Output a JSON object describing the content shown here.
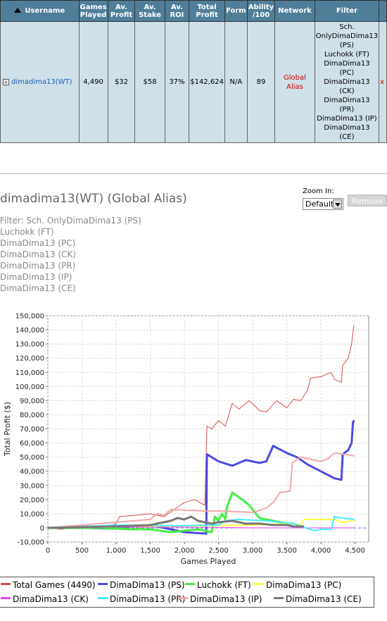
{
  "table": {
    "headers": [
      "Username",
      "Games Played",
      "Av. Profit",
      "Av. Stake",
      "Av. ROI",
      "Total Profit",
      "Form",
      "Ability /100",
      "Network",
      "Filter"
    ],
    "row": {
      "expand": "+",
      "username": "dimadima13(WT)",
      "games_played": "4,490",
      "av_profit": "$32",
      "av_stake": "$58",
      "av_roi": "37%",
      "total_profit": "$142,624",
      "form": "N/A",
      "ability": "89",
      "network": "Global Alias",
      "filter": [
        "Sch.",
        "OnlyDimaDima13",
        "(PS)",
        "Luchokk (FT)",
        "DimaDima13",
        "(PC)",
        "DimaDima13",
        "(CK)",
        "DimaDima13",
        "(PR)",
        "DimaDima13 (IP)",
        "DimaDima13",
        "(CE)"
      ],
      "remove": "x"
    }
  },
  "chart_title": "dimadima13(WT) (Global Alias)",
  "filter_lines": [
    "Filter: Sch. OnlyDimaDima13 (PS)",
    "Luchokk (FT)",
    "DimaDima13 (PC)",
    "DimaDima13 (CK)",
    "DimaDima13 (PR)",
    "DimaDima13 (IP)",
    "DimaDima13 (CE)"
  ],
  "zoom": {
    "label": "Zoom In:",
    "value": "Default",
    "remove_label": "Remove"
  },
  "colors": {
    "header_bg": "#4f7e99",
    "row_bg": "#cfe0e8",
    "link": "#1f5db5",
    "network": "#c00000"
  },
  "chart_data": {
    "type": "line",
    "xlabel": "Games Played",
    "ylabel": "Total Profit ($)",
    "xlim": [
      0,
      4700
    ],
    "ylim": [
      -10000,
      150000
    ],
    "x_ticks": [
      0,
      500,
      1000,
      1500,
      2000,
      2500,
      3000,
      3500,
      4000,
      4500
    ],
    "y_ticks": [
      -10000,
      0,
      10000,
      20000,
      30000,
      40000,
      50000,
      60000,
      70000,
      80000,
      90000,
      100000,
      110000,
      120000,
      130000,
      140000,
      150000
    ],
    "grid": true,
    "legend": "bottom",
    "series": [
      {
        "name": "Total Games (4490)",
        "color": "#d94a4a",
        "width": 1,
        "points": [
          [
            0,
            0
          ],
          [
            200,
            -1000
          ],
          [
            500,
            1500
          ],
          [
            800,
            0
          ],
          [
            1000,
            3000
          ],
          [
            1050,
            8000
          ],
          [
            1300,
            9000
          ],
          [
            1500,
            10000
          ],
          [
            1700,
            8000
          ],
          [
            1850,
            13000
          ],
          [
            2000,
            18000
          ],
          [
            2150,
            20000
          ],
          [
            2300,
            16000
          ],
          [
            2330,
            72000
          ],
          [
            2400,
            70000
          ],
          [
            2500,
            76000
          ],
          [
            2600,
            72000
          ],
          [
            2700,
            88000
          ],
          [
            2800,
            84000
          ],
          [
            2950,
            90000
          ],
          [
            3100,
            83000
          ],
          [
            3200,
            82000
          ],
          [
            3350,
            90000
          ],
          [
            3500,
            85000
          ],
          [
            3600,
            91000
          ],
          [
            3700,
            90000
          ],
          [
            3800,
            97000
          ],
          [
            3850,
            106000
          ],
          [
            4000,
            107000
          ],
          [
            4150,
            110000
          ],
          [
            4200,
            105000
          ],
          [
            4300,
            103000
          ],
          [
            4320,
            115000
          ],
          [
            4400,
            120000
          ],
          [
            4450,
            130000
          ],
          [
            4480,
            143000
          ],
          [
            4490,
            142600
          ]
        ]
      },
      {
        "name": "DimaDima13 (PS)",
        "color": "#4b4bdf",
        "width": 3,
        "points": [
          [
            0,
            0
          ],
          [
            500,
            0
          ],
          [
            1000,
            -500
          ],
          [
            1300,
            1500
          ],
          [
            1600,
            1000
          ],
          [
            1700,
            0
          ],
          [
            2000,
            -3000
          ],
          [
            2320,
            -4000
          ],
          [
            2330,
            52000
          ],
          [
            2400,
            50000
          ],
          [
            2500,
            47000
          ],
          [
            2700,
            44000
          ],
          [
            2900,
            48000
          ],
          [
            3100,
            46000
          ],
          [
            3200,
            47000
          ],
          [
            3300,
            58000
          ],
          [
            3500,
            53000
          ],
          [
            3650,
            50000
          ],
          [
            3800,
            45000
          ],
          [
            4000,
            40000
          ],
          [
            4200,
            35000
          ],
          [
            4300,
            34000
          ],
          [
            4320,
            52000
          ],
          [
            4400,
            55000
          ],
          [
            4450,
            60000
          ],
          [
            4470,
            75000
          ],
          [
            4490,
            76000
          ]
        ]
      },
      {
        "name": "Luchokk (FT)",
        "color": "#44ee44",
        "width": 3,
        "points": [
          [
            0,
            0
          ],
          [
            800,
            0
          ],
          [
            1200,
            -1000
          ],
          [
            1500,
            -1000
          ],
          [
            1800,
            -3000
          ],
          [
            2000,
            -2000
          ],
          [
            2200,
            -1000
          ],
          [
            2400,
            -3000
          ],
          [
            2450,
            8000
          ],
          [
            2500,
            5000
          ],
          [
            2550,
            10000
          ],
          [
            2600,
            6000
          ],
          [
            2620,
            14000
          ],
          [
            2700,
            25000
          ],
          [
            2850,
            20000
          ],
          [
            2950,
            16000
          ],
          [
            3050,
            10000
          ],
          [
            3100,
            7000
          ],
          [
            3300,
            5000
          ],
          [
            3500,
            3000
          ],
          [
            3600,
            3000
          ]
        ]
      },
      {
        "name": "DimaDima13 (PC)",
        "color": "#ffff44",
        "width": 2,
        "points": [
          [
            0,
            0
          ],
          [
            1500,
            1000
          ],
          [
            3000,
            2000
          ],
          [
            3600,
            3000
          ],
          [
            3700,
            2000
          ],
          [
            3750,
            6000
          ],
          [
            4000,
            6000
          ],
          [
            4200,
            6000
          ],
          [
            4300,
            4000
          ],
          [
            4490,
            5000
          ]
        ]
      },
      {
        "name": "DimaDima13 (CK)",
        "color": "#ee44ee",
        "width": 1,
        "points": [
          [
            0,
            0
          ],
          [
            1000,
            500
          ],
          [
            2000,
            500
          ],
          [
            3000,
            0
          ],
          [
            4000,
            0
          ],
          [
            4490,
            0
          ]
        ]
      },
      {
        "name": "DimaDima13 (PR)",
        "color": "#44eeff",
        "width": 2,
        "points": [
          [
            0,
            0
          ],
          [
            1000,
            2000
          ],
          [
            2000,
            1500
          ],
          [
            2500,
            2000
          ],
          [
            2600,
            5000
          ],
          [
            2800,
            6000
          ],
          [
            3200,
            5000
          ],
          [
            3600,
            3000
          ],
          [
            3900,
            -2000
          ],
          [
            4000,
            -1000
          ],
          [
            4150,
            -1000
          ],
          [
            4200,
            8000
          ],
          [
            4300,
            7000
          ],
          [
            4490,
            6000
          ]
        ]
      },
      {
        "name": "DimaDima13 (IP)",
        "color": "#f0a8a8",
        "width": 2,
        "points": [
          [
            0,
            0
          ],
          [
            1000,
            4000
          ],
          [
            1500,
            6000
          ],
          [
            1600,
            10000
          ],
          [
            1700,
            9000
          ],
          [
            1800,
            13000
          ],
          [
            2300,
            12000
          ],
          [
            2500,
            12000
          ],
          [
            3000,
            11000
          ],
          [
            3200,
            14000
          ],
          [
            3300,
            18000
          ],
          [
            3400,
            25000
          ],
          [
            3550,
            26000
          ],
          [
            3580,
            46000
          ],
          [
            3700,
            50000
          ],
          [
            3900,
            48000
          ],
          [
            4000,
            47000
          ],
          [
            4100,
            49000
          ],
          [
            4200,
            53000
          ],
          [
            4490,
            51000
          ]
        ]
      },
      {
        "name": "DimaDima13 (CE)",
        "color": "#777777",
        "width": 3,
        "points": [
          [
            0,
            0
          ],
          [
            1000,
            1000
          ],
          [
            1500,
            2000
          ],
          [
            1800,
            5000
          ],
          [
            1900,
            7000
          ],
          [
            2000,
            6000
          ],
          [
            2100,
            8000
          ],
          [
            2200,
            5000
          ],
          [
            2300,
            4000
          ],
          [
            2400,
            3000
          ],
          [
            2500,
            4000
          ],
          [
            2700,
            5000
          ],
          [
            2900,
            3000
          ],
          [
            3100,
            3000
          ],
          [
            3300,
            2000
          ],
          [
            3500,
            2000
          ],
          [
            3600,
            1000
          ],
          [
            3750,
            1000
          ]
        ]
      }
    ]
  }
}
